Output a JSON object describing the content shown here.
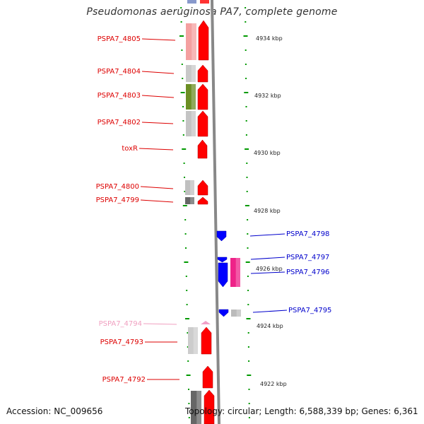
{
  "title": "Pseudomonas aeruginosa PA7, complete genome",
  "accession": "Accession: NC_009656",
  "summary": "Topology: circular; Length: 6,588,339 bp; Genes: 6,361",
  "colors": {
    "forward_label": "#dd0000",
    "reverse_label": "#0000cc",
    "pseudo_label": "#f0a0c0",
    "forward_gene": "#ff0000",
    "reverse_gene": "#0000ff",
    "tick": "#009900",
    "backbone": "#888888"
  },
  "kbp_scale": [
    "4934 kbp",
    "4932 kbp",
    "4930 kbp",
    "4928 kbp",
    "4926 kbp",
    "4924 kbp",
    "4922 kbp"
  ],
  "genes_left": [
    {
      "label": "PSPA7_4805",
      "type": "forward"
    },
    {
      "label": "PSPA7_4804",
      "type": "forward"
    },
    {
      "label": "PSPA7_4803",
      "type": "forward"
    },
    {
      "label": "PSPA7_4802",
      "type": "forward"
    },
    {
      "label": "toxR",
      "type": "forward"
    },
    {
      "label": "PSPA7_4800",
      "type": "forward"
    },
    {
      "label": "PSPA7_4799",
      "type": "forward"
    },
    {
      "label": "PSPA7_4794",
      "type": "pseudo"
    },
    {
      "label": "PSPA7_4793",
      "type": "forward"
    },
    {
      "label": "PSPA7_4792",
      "type": "forward"
    }
  ],
  "genes_right": [
    {
      "label": "PSPA7_4798",
      "type": "reverse"
    },
    {
      "label": "PSPA7_4797",
      "type": "reverse"
    },
    {
      "label": "PSPA7_4796",
      "type": "reverse"
    },
    {
      "label": "PSPA7_4795",
      "type": "reverse"
    }
  ]
}
